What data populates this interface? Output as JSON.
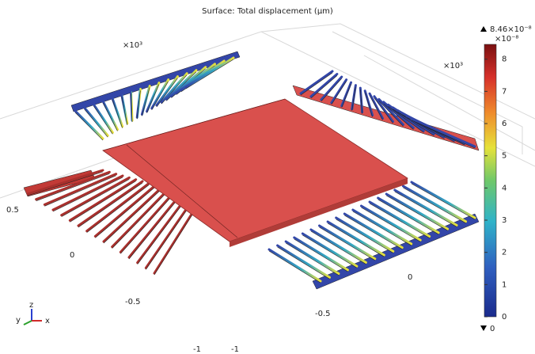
{
  "title": "Surface: Total displacement (μm)",
  "colorbar": {
    "max_label": "8.46×10⁻⁸",
    "scale_label": "×10⁻⁸",
    "min_label": "0",
    "ticks": [
      0,
      1,
      2,
      3,
      4,
      5,
      6,
      7,
      8
    ]
  },
  "axes": {
    "scale_labels": [
      "×10³",
      "×10³"
    ],
    "tick_labels": [
      "0.5",
      "0",
      "-0.5",
      "-1",
      "-1",
      "-0.5",
      "0"
    ]
  },
  "triad": {
    "z": "z",
    "y": "y",
    "x": "x"
  }
}
